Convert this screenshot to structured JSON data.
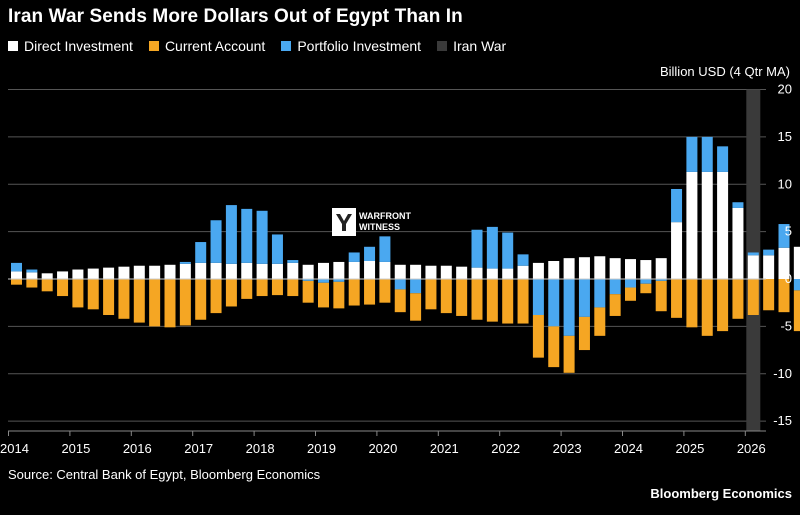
{
  "title": "Iran War Sends More Dollars Out of Egypt Than In",
  "legend": [
    {
      "label": "Direct Investment",
      "color": "#ffffff"
    },
    {
      "label": "Current Account",
      "color": "#f5a623"
    },
    {
      "label": "Portfolio Investment",
      "color": "#4aa8f0"
    },
    {
      "label": "Iran War",
      "color": "#3a3a3a"
    }
  ],
  "unit_label": "Billion USD (4 Qtr MA)",
  "source": "Source: Central Bank of Egypt, Bloomberg Economics",
  "brand": "Bloomberg Economics",
  "watermark": {
    "line1": "WARFRONT",
    "line2": "WITNESS"
  },
  "chart_data": {
    "type": "bar",
    "stacked": true,
    "frequency": "quarterly",
    "x_start": "2014 Q1",
    "x_tick_labels": [
      "2014",
      "2015",
      "2016",
      "2017",
      "2018",
      "2019",
      "2020",
      "2021",
      "2022",
      "2023",
      "2024",
      "2025",
      "2026"
    ],
    "ylim": [
      -16,
      20
    ],
    "y_ticks": [
      20,
      15,
      10,
      5,
      0,
      -5,
      -10,
      -15
    ],
    "y_axis_position": "right",
    "grid": true,
    "highlight": {
      "label": "Iran War",
      "quarter_index": 48
    },
    "series": [
      {
        "name": "Direct Investment",
        "color": "#ffffff",
        "values": [
          0.8,
          0.7,
          0.6,
          0.8,
          1.0,
          1.1,
          1.2,
          1.3,
          1.4,
          1.4,
          1.5,
          1.6,
          1.7,
          1.7,
          1.6,
          1.7,
          1.6,
          1.6,
          1.7,
          1.5,
          1.7,
          1.8,
          1.8,
          1.9,
          1.8,
          1.5,
          1.5,
          1.4,
          1.4,
          1.3,
          1.2,
          1.1,
          1.1,
          1.4,
          1.7,
          1.9,
          2.2,
          2.3,
          2.4,
          2.2,
          2.1,
          2.0,
          2.2,
          6.0,
          11.3,
          11.3,
          11.3,
          7.5,
          2.5,
          2.5,
          3.3,
          3.4
        ]
      },
      {
        "name": "Portfolio Investment",
        "color": "#4aa8f0",
        "values": [
          0.9,
          0.3,
          0,
          0,
          0,
          0,
          0,
          0,
          0,
          0,
          0,
          0.2,
          2.2,
          4.5,
          6.2,
          5.7,
          5.6,
          3.1,
          0.3,
          -0.2,
          -0.4,
          -0.3,
          1.0,
          1.5,
          2.7,
          -1.1,
          -1.5,
          0,
          0,
          0,
          4.0,
          4.4,
          3.8,
          1.2,
          -3.8,
          -5.0,
          -6.0,
          -4.0,
          -3.0,
          -1.6,
          -0.9,
          -0.5,
          -0.2,
          3.5,
          3.7,
          3.7,
          2.7,
          0.6,
          0.3,
          0.6,
          2.5,
          -1.2
        ]
      },
      {
        "name": "Current Account",
        "color": "#f5a623",
        "values": [
          -0.6,
          -0.9,
          -1.3,
          -1.8,
          -3.0,
          -3.2,
          -3.8,
          -4.2,
          -4.6,
          -5.0,
          -5.1,
          -4.9,
          -4.3,
          -3.6,
          -2.9,
          -2.1,
          -1.8,
          -1.7,
          -1.8,
          -2.3,
          -2.6,
          -2.8,
          -2.8,
          -2.7,
          -2.5,
          -2.4,
          -2.9,
          -3.2,
          -3.6,
          -3.9,
          -4.3,
          -4.5,
          -4.7,
          -4.7,
          -4.5,
          -4.3,
          -3.9,
          -3.5,
          -3.0,
          -2.3,
          -1.4,
          -1.0,
          -3.2,
          -4.1,
          -5.1,
          -6.0,
          -5.5,
          -4.2,
          -3.8,
          -3.3,
          -3.5,
          -4.3
        ]
      }
    ]
  }
}
